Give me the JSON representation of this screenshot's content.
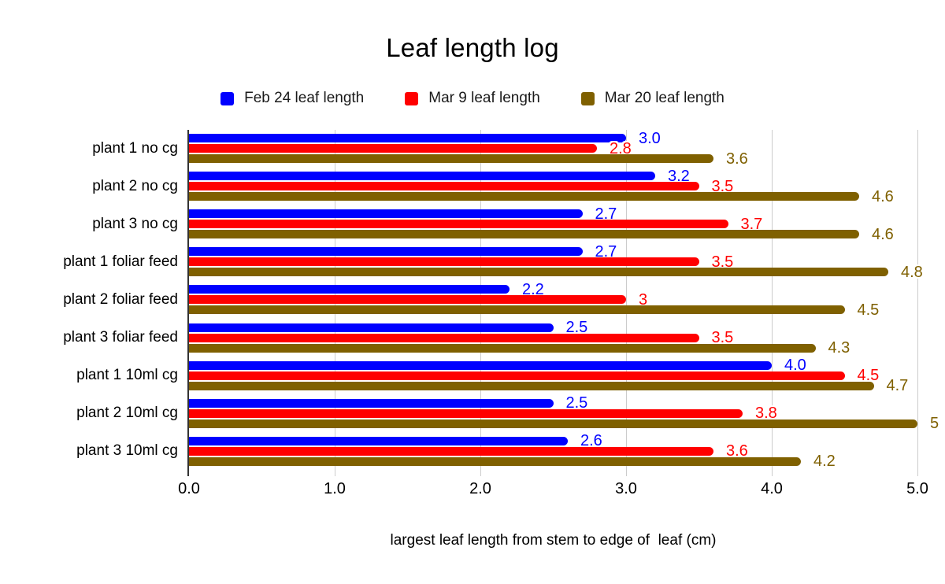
{
  "title": "Leaf length log",
  "legend": [
    {
      "label": "Feb 24 leaf length",
      "color": "#0000ff"
    },
    {
      "label": "Mar 9 leaf length",
      "color": "#ff0000"
    },
    {
      "label": "Mar 20 leaf length",
      "color": "#7f6000"
    }
  ],
  "chart_data": {
    "type": "bar",
    "orientation": "horizontal",
    "title": "Leaf length log",
    "xlabel": "largest leaf length from stem to edge of  leaf (cm)",
    "ylabel": "",
    "xlim": [
      0,
      5
    ],
    "xticks": [
      "0.0",
      "1.0",
      "2.0",
      "3.0",
      "4.0",
      "5.0"
    ],
    "grid": true,
    "legend_position": "top",
    "categories": [
      "plant 1 no cg",
      "plant 2 no cg",
      "plant 3 no cg",
      "plant 1 foliar feed",
      "plant 2 foliar feed",
      "plant 3 foliar feed",
      "plant 1 10ml cg",
      "plant 2 10ml cg",
      "plant 3 10ml cg"
    ],
    "series": [
      {
        "name": "Feb 24 leaf length",
        "color": "#0000ff",
        "values": [
          3.0,
          3.2,
          2.7,
          2.7,
          2.2,
          2.5,
          4.0,
          2.5,
          2.6
        ],
        "labels": [
          "3.0",
          "3.2",
          "2.7",
          "2.7",
          "2.2",
          "2.5",
          "4.0",
          "2.5",
          "2.6"
        ]
      },
      {
        "name": "Mar 9 leaf length",
        "color": "#ff0000",
        "values": [
          2.8,
          3.5,
          3.7,
          3.5,
          3,
          3.5,
          4.5,
          3.8,
          3.6
        ],
        "labels": [
          "2.8",
          "3.5",
          "3.7",
          "3.5",
          "3",
          "3.5",
          "4.5",
          "3.8",
          "3.6"
        ]
      },
      {
        "name": "Mar 20 leaf length",
        "color": "#7f6000",
        "values": [
          3.6,
          4.6,
          4.6,
          4.8,
          4.5,
          4.3,
          4.7,
          5,
          4.2
        ],
        "labels": [
          "3.6",
          "4.6",
          "4.6",
          "4.8",
          "4.5",
          "4.3",
          "4.7",
          "5",
          "4.2"
        ]
      }
    ]
  }
}
